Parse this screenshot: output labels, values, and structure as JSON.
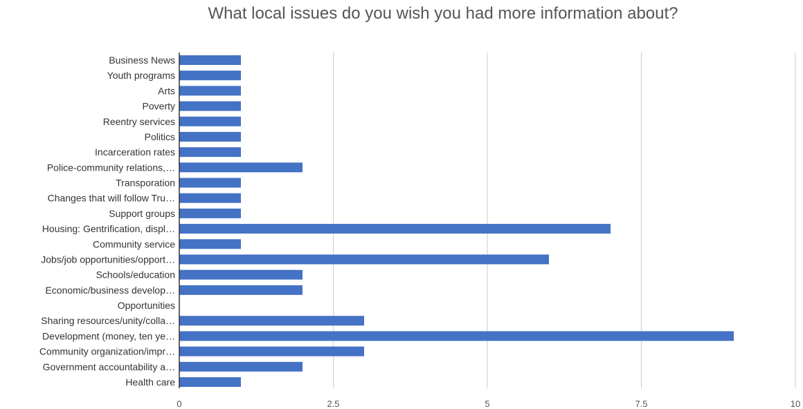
{
  "chart_data": {
    "type": "bar",
    "orientation": "horizontal",
    "title": "What local issues do you wish you had more information about?",
    "xlabel": "",
    "ylabel": "",
    "xlim": [
      0,
      10
    ],
    "xticks": [
      "0",
      "2.5",
      "5",
      "7.5",
      "10"
    ],
    "xtick_values": [
      0,
      2.5,
      5,
      7.5,
      10
    ],
    "grid": true,
    "bar_color": "#4472c4",
    "categories": [
      "Business News",
      "Youth programs",
      "Arts",
      "Poverty",
      "Reentry services",
      "Politics",
      "Incarceration rates",
      "Police-community relations,…",
      "Transporation",
      "Changes that will follow Tru…",
      "Support groups",
      "Housing: Gentrification, displ…",
      "Community service",
      "Jobs/job opportunities/opport…",
      "Schools/education",
      "Economic/business develop…",
      "Opportunities",
      "Sharing resources/unity/colla…",
      "Development (money, ten ye…",
      "Community organization/impr…",
      "Government accountability a…",
      "Health care"
    ],
    "values": [
      1,
      1,
      1,
      1,
      1,
      1,
      1,
      2,
      1,
      1,
      1,
      7,
      1,
      6,
      2,
      2,
      0,
      3,
      9,
      3,
      2,
      1
    ]
  }
}
